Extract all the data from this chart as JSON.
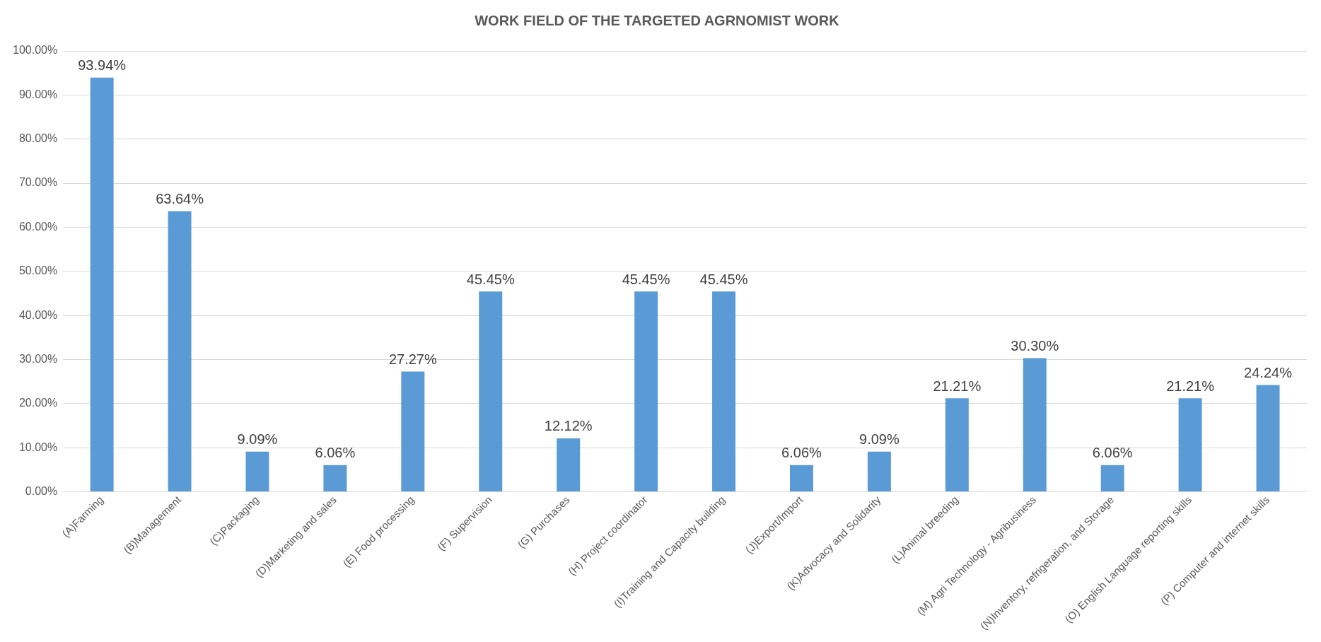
{
  "chart_data": {
    "type": "bar",
    "title": "WORK FIELD OF THE TARGETED AGRNOMIST WORK",
    "categories": [
      "(A)Farming",
      "(B)Management",
      "(C)Packaging",
      "(D)Marketing and sales",
      "(E) Food processing",
      "(F) Supervision",
      "(G) Purchases",
      "(H) Project coordinator",
      "(I)Training and Capacity building",
      "(J)Export/Import",
      "(K)Advocacy and Solidarity",
      "(L)Animal breeding",
      "(M) Agri Technology - Agribusiness",
      "(N)Inventory, refrigeration, and Storage",
      "(O) English Language reporting skills",
      "(P) Computer and internet skills"
    ],
    "values": [
      93.94,
      63.64,
      9.09,
      6.06,
      27.27,
      45.45,
      12.12,
      45.45,
      45.45,
      6.06,
      9.09,
      21.21,
      30.3,
      6.06,
      21.21,
      24.24
    ],
    "value_labels": [
      "93.94%",
      "63.64%",
      "9.09%",
      "6.06%",
      "27.27%",
      "45.45%",
      "12.12%",
      "45.45%",
      "45.45%",
      "6.06%",
      "9.09%",
      "21.21%",
      "30.30%",
      "6.06%",
      "21.21%",
      "24.24%"
    ],
    "color": "#5b9bd5",
    "ylim": [
      0,
      100
    ],
    "yticks": [
      {
        "value": 0,
        "label": "0.00%"
      },
      {
        "value": 10,
        "label": "10.00%"
      },
      {
        "value": 20,
        "label": "20.00%"
      },
      {
        "value": 30,
        "label": "30.00%"
      },
      {
        "value": 40,
        "label": "40.00%"
      },
      {
        "value": 50,
        "label": "50.00%"
      },
      {
        "value": 60,
        "label": "60.00%"
      },
      {
        "value": 70,
        "label": "70.00%"
      },
      {
        "value": 80,
        "label": "80.00%"
      },
      {
        "value": 90,
        "label": "90.00%"
      },
      {
        "value": 100,
        "label": "100.00%"
      }
    ],
    "grid": "y",
    "legend": false
  }
}
